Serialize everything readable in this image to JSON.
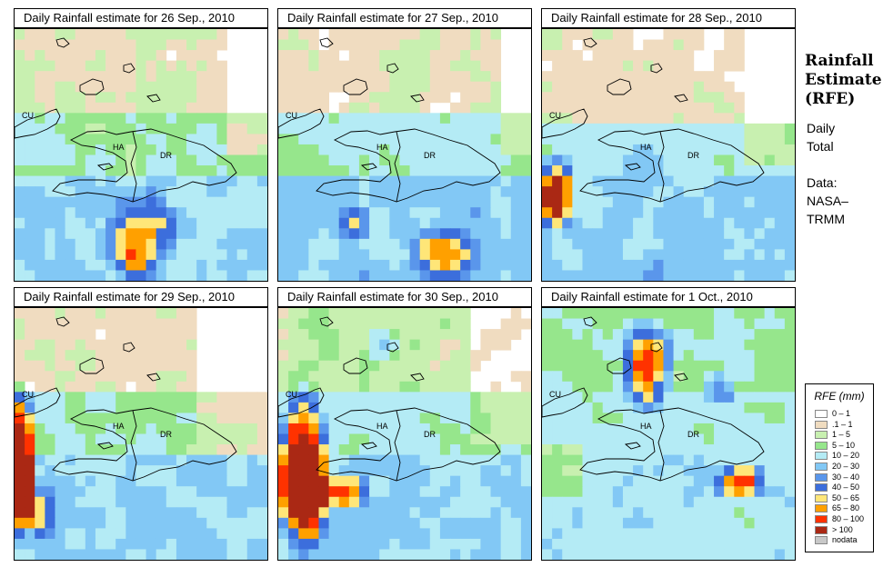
{
  "panels": [
    {
      "title": "Daily Rainfall estimate for  26 Sep., 2010",
      "pattern": "sep26"
    },
    {
      "title": "Daily Rainfall estimate for  27 Sep., 2010",
      "pattern": "sep27"
    },
    {
      "title": "Daily Rainfall estimate for  28 Sep., 2010",
      "pattern": "sep28"
    },
    {
      "title": "Daily Rainfall estimate for  29 Sep., 2010",
      "pattern": "sep29"
    },
    {
      "title": "Daily Rainfall estimate for  30 Sep., 2010",
      "pattern": "sep30"
    },
    {
      "title": "Daily Rainfall estimate for  1 Oct., 2010",
      "pattern": "oct01"
    }
  ],
  "map_labels": {
    "cuba": "CU",
    "haiti": "HA",
    "dominican_republic": "DR"
  },
  "side": {
    "title_line1": "Rainfall",
    "title_line2": "Estimate",
    "title_line3": "(RFE)",
    "period_line1": "Daily",
    "period_line2": "Total",
    "source_line1": "Data:",
    "source_line2": "NASA–",
    "source_line3": "TRMM"
  },
  "legend": {
    "title": "RFE (mm)",
    "items": [
      {
        "label": "0 – 1",
        "color": "#ffffff"
      },
      {
        "label": ".1 – 1",
        "color": "#f0dcc0"
      },
      {
        "label": "1 – 5",
        "color": "#c8f0b0"
      },
      {
        "label": "5 – 10",
        "color": "#96e68c"
      },
      {
        "label": "10 – 20",
        "color": "#b4ebf5"
      },
      {
        "label": "20 – 30",
        "color": "#82c8f5"
      },
      {
        "label": "30 – 40",
        "color": "#5a96eb"
      },
      {
        "label": "40 – 50",
        "color": "#3c6edc"
      },
      {
        "label": "50 – 65",
        "color": "#ffe678"
      },
      {
        "label": "65 – 80",
        "color": "#ffa000"
      },
      {
        "label": "80 – 100",
        "color": "#ff3200"
      },
      {
        "label": "> 100",
        "color": "#aa2814"
      },
      {
        "label": "nodata",
        "color": "#c8c8c8"
      }
    ]
  }
}
